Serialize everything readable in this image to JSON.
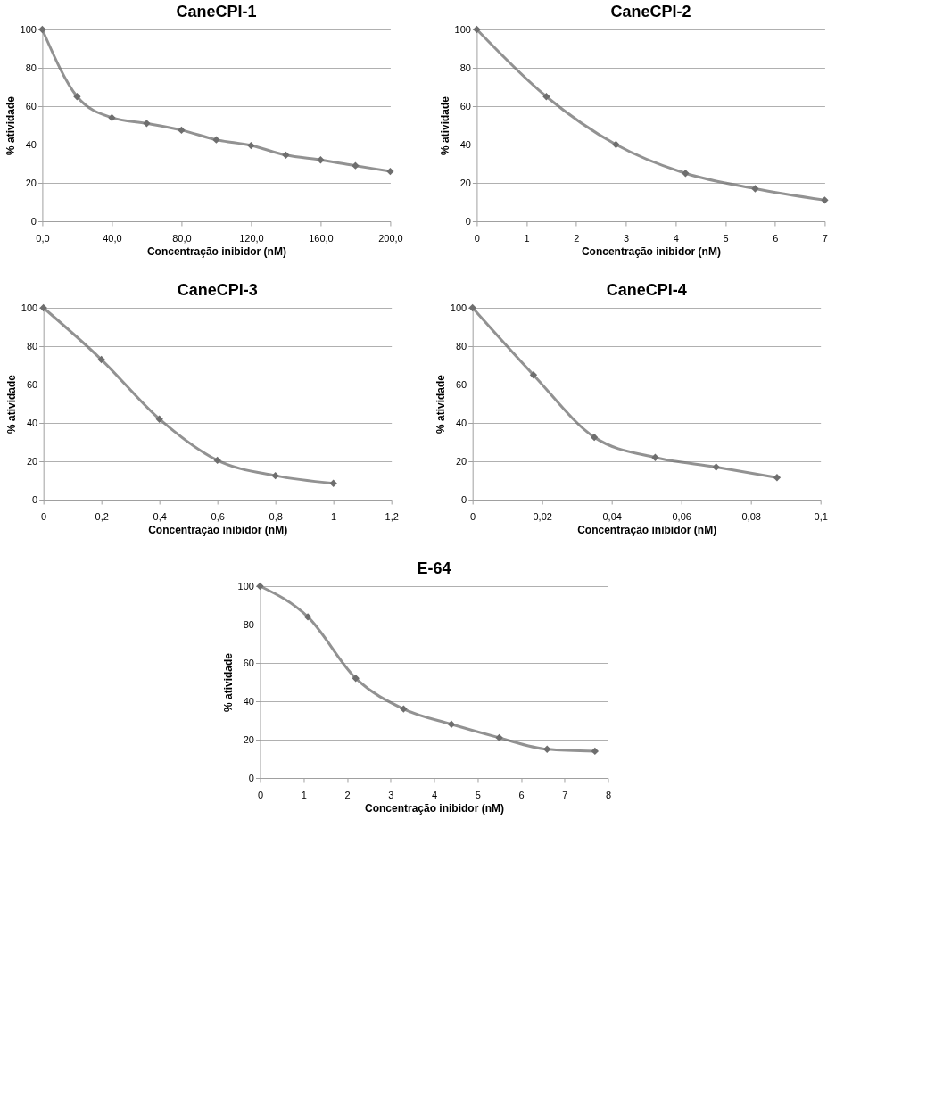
{
  "chart_data": [
    {
      "type": "line",
      "title": "CaneCPI-1",
      "xlabel": "Concentração  inibidor (nM)",
      "ylabel": "%  atividade",
      "x": [
        0,
        20,
        40,
        60,
        80,
        100,
        120,
        140,
        160,
        180,
        200
      ],
      "series": [
        {
          "color": "#6e6e6e",
          "values": [
            100,
            65,
            54,
            51,
            47.5,
            42.5,
            39.5,
            34.5,
            32,
            29,
            26
          ]
        }
      ],
      "xlim": [
        0,
        200
      ],
      "xticks": [
        {
          "value": 0,
          "label": "0,0"
        },
        {
          "value": 40,
          "label": "40,0"
        },
        {
          "value": 80,
          "label": "80,0"
        },
        {
          "value": 120,
          "label": "120,0"
        },
        {
          "value": 160,
          "label": "160,0"
        },
        {
          "value": 200,
          "label": "200,0"
        }
      ],
      "ylim": [
        0,
        100
      ],
      "yticks": [
        0,
        20,
        40,
        60,
        80,
        100
      ],
      "grid": "y",
      "marker": "diamond",
      "line_style": "solid",
      "legend": false
    },
    {
      "type": "line",
      "title": "CaneCPI-2",
      "xlabel": "Concentração  inibidor (nM)",
      "ylabel": "%  atividade",
      "x": [
        0,
        1.4,
        2.8,
        4.2,
        5.6,
        7
      ],
      "series": [
        {
          "color": "#6e6e6e",
          "values": [
            100,
            65,
            40,
            25,
            17,
            11
          ]
        }
      ],
      "xlim": [
        0,
        7
      ],
      "xticks": [
        0,
        1,
        2,
        3,
        4,
        5,
        6,
        7
      ],
      "ylim": [
        0,
        100
      ],
      "yticks": [
        0,
        20,
        40,
        60,
        80,
        100
      ],
      "grid": "y",
      "marker": "diamond",
      "line_style": "solid",
      "legend": false
    },
    {
      "type": "line",
      "title": "CaneCPI-3",
      "xlabel": "Concentração  inibidor (nM)",
      "ylabel": "%  atividade",
      "x": [
        0,
        0.2,
        0.4,
        0.6,
        0.8,
        1
      ],
      "series": [
        {
          "color": "#6e6e6e",
          "values": [
            100,
            73,
            42,
            20.5,
            12.5,
            8.5
          ]
        }
      ],
      "xlim": [
        0,
        1.2
      ],
      "xticks": [
        0,
        {
          "value": 0.2,
          "label": "0,2"
        },
        {
          "value": 0.4,
          "label": "0,4"
        },
        {
          "value": 0.6,
          "label": "0,6"
        },
        {
          "value": 0.8,
          "label": "0,8"
        },
        1,
        {
          "value": 1.2,
          "label": "1,2"
        }
      ],
      "ylim": [
        0,
        100
      ],
      "yticks": [
        0,
        20,
        40,
        60,
        80,
        100
      ],
      "grid": "y",
      "marker": "diamond",
      "line_style": "solid",
      "legend": false
    },
    {
      "type": "line",
      "title": "CaneCPI-4",
      "xlabel": "Concentração  inibidor (nM)",
      "ylabel": "%  atividade",
      "x": [
        0,
        0.0175,
        0.035,
        0.0525,
        0.07,
        0.0875
      ],
      "series": [
        {
          "color": "#6e6e6e",
          "values": [
            100,
            65,
            32.5,
            22,
            17,
            11.5
          ]
        }
      ],
      "xlim": [
        0,
        0.1
      ],
      "xticks": [
        0,
        {
          "value": 0.02,
          "label": "0,02"
        },
        {
          "value": 0.04,
          "label": "0,04"
        },
        {
          "value": 0.06,
          "label": "0,06"
        },
        {
          "value": 0.08,
          "label": "0,08"
        },
        {
          "value": 0.1,
          "label": "0,1"
        }
      ],
      "ylim": [
        0,
        100
      ],
      "yticks": [
        0,
        20,
        40,
        60,
        80,
        100
      ],
      "grid": "y",
      "marker": "diamond",
      "line_style": "solid",
      "legend": false
    },
    {
      "type": "line",
      "title": "E-64",
      "xlabel": "Concentração  inibidor (nM)",
      "ylabel": "%  atividade",
      "x": [
        0,
        1.1,
        2.2,
        3.3,
        4.4,
        5.5,
        6.6,
        7.7
      ],
      "series": [
        {
          "color": "#6e6e6e",
          "values": [
            100,
            84,
            52,
            36,
            28,
            21,
            15,
            14
          ]
        }
      ],
      "xlim": [
        0,
        8
      ],
      "xticks": [
        0,
        1,
        2,
        3,
        4,
        5,
        6,
        7,
        8
      ],
      "ylim": [
        0,
        100
      ],
      "yticks": [
        0,
        20,
        40,
        60,
        80,
        100
      ],
      "grid": "y",
      "marker": "diamond",
      "line_style": "solid",
      "legend": false
    }
  ]
}
